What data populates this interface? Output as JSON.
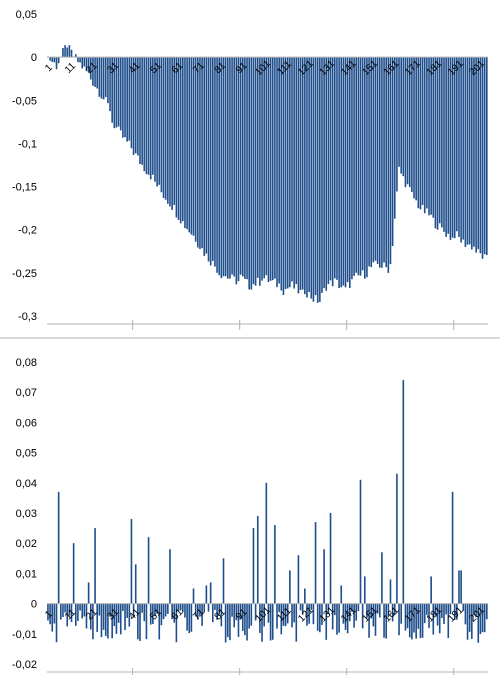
{
  "colors": {
    "bar": "#1f4e8c",
    "axis": "#b3b3b3",
    "grid": "#d9d9d9",
    "text": "#000000"
  },
  "chart_data": [
    {
      "type": "bar",
      "title": "",
      "xlabel": "",
      "ylabel": "",
      "ylim": [
        -0.3,
        0.05
      ],
      "y_ticks": [
        "0,05",
        "0",
        "-0,05",
        "-0,1",
        "-0,15",
        "-0,2",
        "-0,25",
        "-0,3"
      ],
      "y_tick_values": [
        0.05,
        0,
        -0.05,
        -0.1,
        -0.15,
        -0.2,
        -0.25,
        -0.3
      ],
      "category_labels": [
        "1",
        "11",
        "21",
        "31",
        "41",
        "51",
        "61",
        "71",
        "81",
        "91",
        "101",
        "111",
        "121",
        "131",
        "141",
        "151",
        "161",
        "171",
        "181",
        "191",
        "201"
      ],
      "n_points": 206,
      "x": [
        1,
        5,
        10,
        11,
        15,
        20,
        21,
        25,
        30,
        31,
        35,
        40,
        41,
        45,
        50,
        51,
        55,
        60,
        61,
        65,
        70,
        71,
        75,
        80,
        81,
        85,
        90,
        91,
        95,
        100,
        101,
        105,
        110,
        111,
        115,
        120,
        121,
        125,
        128,
        131,
        135,
        140,
        141,
        145,
        150,
        151,
        155,
        160,
        161,
        162,
        165,
        170,
        171,
        175,
        180,
        181,
        185,
        190,
        191,
        195,
        200,
        201,
        206
      ],
      "values": [
        0,
        -0.01,
        0.015,
        0.008,
        -0.005,
        -0.02,
        -0.025,
        -0.04,
        -0.06,
        -0.075,
        -0.09,
        -0.105,
        -0.11,
        -0.125,
        -0.14,
        -0.145,
        -0.16,
        -0.175,
        -0.18,
        -0.195,
        -0.21,
        -0.215,
        -0.23,
        -0.245,
        -0.25,
        -0.255,
        -0.26,
        -0.255,
        -0.265,
        -0.26,
        -0.255,
        -0.26,
        -0.265,
        -0.27,
        -0.265,
        -0.275,
        -0.27,
        -0.28,
        -0.283,
        -0.265,
        -0.26,
        -0.27,
        -0.265,
        -0.255,
        -0.25,
        -0.245,
        -0.24,
        -0.245,
        -0.24,
        -0.215,
        -0.13,
        -0.155,
        -0.16,
        -0.175,
        -0.185,
        -0.19,
        -0.2,
        -0.21,
        -0.205,
        -0.215,
        -0.22,
        -0.225,
        -0.235
      ]
    },
    {
      "type": "bar",
      "title": "",
      "xlabel": "",
      "ylabel": "",
      "ylim": [
        -0.02,
        0.08
      ],
      "y_ticks": [
        "0,08",
        "0,07",
        "0,06",
        "0,05",
        "0,04",
        "0,03",
        "0,02",
        "0,01",
        "0",
        "-0,01",
        "-0,02"
      ],
      "y_tick_values": [
        0.08,
        0.07,
        0.06,
        0.05,
        0.04,
        0.03,
        0.02,
        0.01,
        0,
        -0.01,
        -0.02
      ],
      "category_labels": [
        "1",
        "11",
        "21",
        "31",
        "41",
        "51",
        "61",
        "71",
        "81",
        "91",
        "101",
        "111",
        "121",
        "131",
        "141",
        "151",
        "161",
        "171",
        "181",
        "191",
        "201"
      ],
      "n_points": 206,
      "spikes": {
        "x": [
          6,
          13,
          20,
          23,
          40,
          42,
          48,
          58,
          69,
          75,
          77,
          83,
          97,
          99,
          103,
          107,
          114,
          118,
          121,
          126,
          130,
          133,
          138,
          147,
          149,
          157,
          161,
          164,
          167,
          180,
          190,
          193,
          194
        ],
        "values": [
          0.037,
          0.02,
          0.007,
          0.025,
          0.028,
          0.013,
          0.022,
          0.018,
          0.005,
          0.006,
          0.007,
          0.015,
          0.025,
          0.029,
          0.04,
          0.026,
          0.011,
          0.016,
          0.005,
          0.027,
          0.018,
          0.03,
          0.006,
          0.041,
          0.009,
          0.017,
          0.008,
          0.043,
          0.074,
          0.009,
          0.037,
          0.011,
          0.011
        ]
      },
      "baseline_range": [
        -0.013,
        0
      ]
    }
  ]
}
